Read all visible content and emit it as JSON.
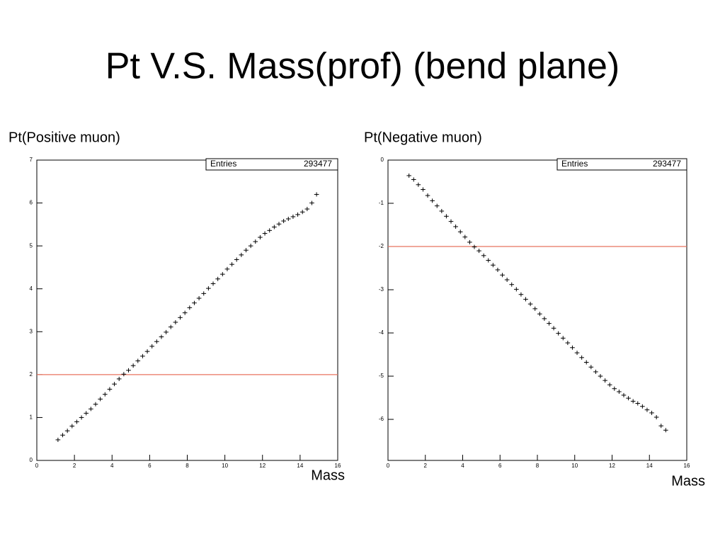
{
  "title": "Pt V.S. Mass(prof) (bend plane)",
  "chart_data": [
    {
      "type": "scatter",
      "y_label": "Pt(Positive muon)",
      "x_label": "Mass",
      "stats_label": "Entries",
      "stats_value": 293477,
      "reference_line": 2,
      "reference_color": "#e8735f",
      "color": "#000000",
      "xlim": [
        0,
        16
      ],
      "xticks": [
        0,
        2,
        4,
        6,
        8,
        10,
        12,
        14,
        16
      ],
      "ylim": [
        0,
        7
      ],
      "yticks": [
        0,
        1,
        2,
        3,
        4,
        5,
        6,
        7
      ],
      "x": [
        1.125,
        1.375,
        1.625,
        1.875,
        2.125,
        2.375,
        2.625,
        2.875,
        3.125,
        3.375,
        3.625,
        3.875,
        4.125,
        4.375,
        4.625,
        4.875,
        5.125,
        5.375,
        5.625,
        5.875,
        6.125,
        6.375,
        6.625,
        6.875,
        7.125,
        7.375,
        7.625,
        7.875,
        8.125,
        8.375,
        8.625,
        8.875,
        9.125,
        9.375,
        9.625,
        9.875,
        10.125,
        10.375,
        10.625,
        10.875,
        11.125,
        11.375,
        11.625,
        11.875,
        12.125,
        12.375,
        12.625,
        12.875,
        13.125,
        13.375,
        13.625,
        13.875,
        14.125,
        14.375,
        14.625,
        14.875
      ],
      "values": [
        0.48,
        0.59,
        0.69,
        0.8,
        0.9,
        1.0,
        1.1,
        1.2,
        1.31,
        1.43,
        1.54,
        1.66,
        1.78,
        1.9,
        2.01,
        2.1,
        2.21,
        2.32,
        2.43,
        2.54,
        2.66,
        2.77,
        2.88,
        2.99,
        3.11,
        3.22,
        3.33,
        3.44,
        3.56,
        3.67,
        3.78,
        3.89,
        4.01,
        4.12,
        4.23,
        4.34,
        4.46,
        4.57,
        4.68,
        4.79,
        4.9,
        5.0,
        5.1,
        5.2,
        5.29,
        5.36,
        5.44,
        5.51,
        5.58,
        5.63,
        5.68,
        5.73,
        5.79,
        5.86,
        6.0,
        6.2
      ]
    },
    {
      "type": "scatter",
      "y_label": "Pt(Negative muon)",
      "x_label": "Mass",
      "stats_label": "Entries",
      "stats_value": 293477,
      "reference_line": -2,
      "reference_color": "#e8735f",
      "color": "#000000",
      "xlim": [
        0,
        16
      ],
      "xticks": [
        0,
        2,
        4,
        6,
        8,
        10,
        12,
        14,
        16
      ],
      "ylim": [
        -6.95,
        0
      ],
      "yticks": [
        -6,
        -5,
        -4,
        -3,
        -2,
        -1,
        0
      ],
      "x": [
        1.125,
        1.375,
        1.625,
        1.875,
        2.125,
        2.375,
        2.625,
        2.875,
        3.125,
        3.375,
        3.625,
        3.875,
        4.125,
        4.375,
        4.625,
        4.875,
        5.125,
        5.375,
        5.625,
        5.875,
        6.125,
        6.375,
        6.625,
        6.875,
        7.125,
        7.375,
        7.625,
        7.875,
        8.125,
        8.375,
        8.625,
        8.875,
        9.125,
        9.375,
        9.625,
        9.875,
        10.125,
        10.375,
        10.625,
        10.875,
        11.125,
        11.375,
        11.625,
        11.875,
        12.125,
        12.375,
        12.625,
        12.875,
        13.125,
        13.375,
        13.625,
        13.875,
        14.125,
        14.375,
        14.625,
        14.875
      ],
      "values": [
        -0.36,
        -0.45,
        -0.57,
        -0.68,
        -0.82,
        -0.94,
        -1.06,
        -1.18,
        -1.3,
        -1.42,
        -1.54,
        -1.66,
        -1.78,
        -1.9,
        -2.01,
        -2.1,
        -2.21,
        -2.32,
        -2.43,
        -2.54,
        -2.66,
        -2.77,
        -2.88,
        -2.99,
        -3.11,
        -3.22,
        -3.33,
        -3.44,
        -3.56,
        -3.67,
        -3.78,
        -3.89,
        -4.01,
        -4.12,
        -4.23,
        -4.34,
        -4.46,
        -4.57,
        -4.68,
        -4.79,
        -4.9,
        -5.0,
        -5.1,
        -5.2,
        -5.29,
        -5.36,
        -5.44,
        -5.51,
        -5.58,
        -5.63,
        -5.7,
        -5.78,
        -5.85,
        -5.95,
        -6.15,
        -6.25
      ]
    }
  ]
}
